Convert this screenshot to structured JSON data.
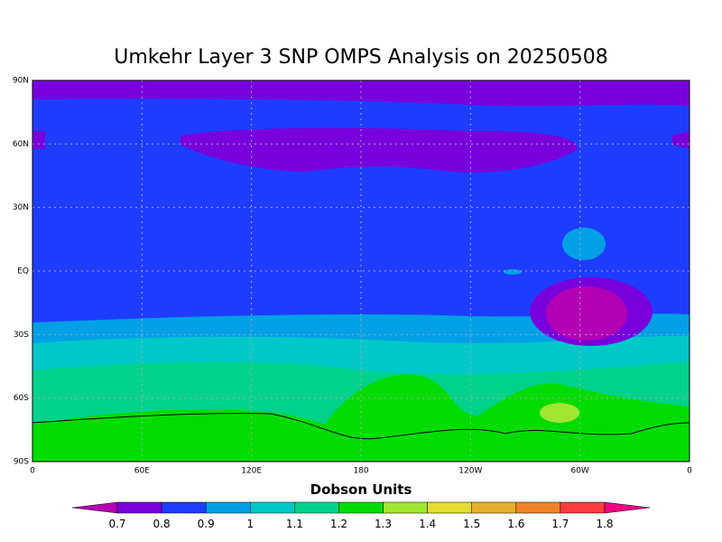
{
  "title": "Umkehr Layer 3 SNP OMPS Analysis on 20250508",
  "map": {
    "lat_labels": [
      "90N",
      "60N",
      "30N",
      "EQ",
      "30S",
      "60S",
      "90S"
    ],
    "lon_labels": [
      "0",
      "60E",
      "120E",
      "180",
      "120W",
      "60W",
      "0"
    ]
  },
  "colorbar": {
    "label": "Dobson Units",
    "ticks": [
      0.7,
      0.8,
      0.9,
      1,
      1.1,
      1.2,
      1.3,
      1.4,
      1.5,
      1.6,
      1.7,
      1.8
    ],
    "colors": [
      "#b400b4",
      "#7800dc",
      "#1e3cff",
      "#00a0e6",
      "#00c8c8",
      "#00d28c",
      "#00dc00",
      "#a0e632",
      "#e6dc32",
      "#e6af2d",
      "#f08228",
      "#fa3c3c",
      "#f00082"
    ]
  }
}
